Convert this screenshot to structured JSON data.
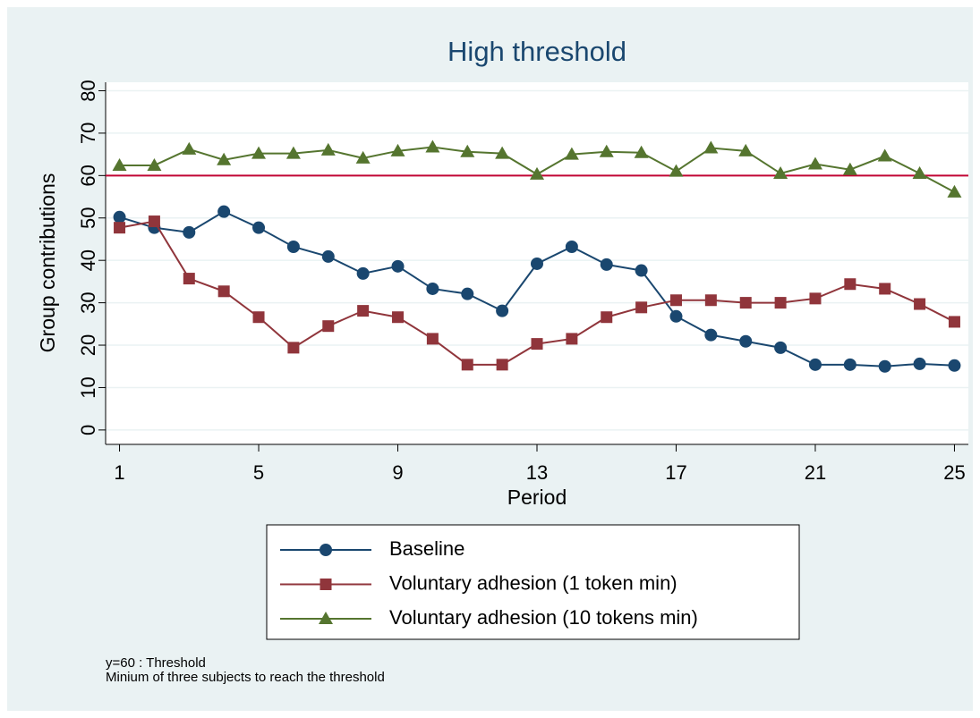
{
  "chart_data": {
    "type": "line",
    "title": "High threshold",
    "x_label": "Period",
    "y_label": "Group contributions",
    "x": [
      1,
      2,
      3,
      4,
      5,
      6,
      7,
      8,
      9,
      10,
      11,
      12,
      13,
      14,
      15,
      16,
      17,
      18,
      19,
      20,
      21,
      22,
      23,
      24,
      25
    ],
    "xlim": [
      0.6,
      25.4
    ],
    "xticks": [
      1,
      5,
      9,
      13,
      17,
      21,
      25
    ],
    "ylim": [
      -3.4,
      82
    ],
    "yticks": [
      0,
      10,
      20,
      30,
      40,
      50,
      60,
      70,
      80
    ],
    "grid": true,
    "hline": {
      "value": 60,
      "color": "#c10534"
    },
    "series": [
      {
        "name": "Baseline",
        "color": "#1a476f",
        "marker": "circle",
        "values": [
          50.2,
          47.7,
          46.6,
          51.5,
          47.7,
          43.2,
          40.9,
          36.9,
          38.6,
          33.3,
          32.1,
          28.1,
          39.2,
          43.2,
          39.0,
          37.6,
          26.8,
          22.4,
          20.9,
          19.4,
          15.4,
          15.4,
          15.0,
          15.6,
          15.2
        ]
      },
      {
        "name": "Voluntary adhesion (1 token min)",
        "color": "#90353b",
        "marker": "square",
        "values": [
          47.7,
          49.2,
          35.7,
          32.7,
          26.6,
          19.4,
          24.5,
          28.1,
          26.6,
          21.5,
          15.4,
          15.4,
          20.3,
          21.5,
          26.6,
          28.9,
          30.6,
          30.6,
          30.0,
          30.0,
          31.0,
          34.4,
          33.3,
          29.7,
          25.5
        ]
      },
      {
        "name": "Voluntary adhesion (10 tokens min)",
        "color": "#55752f",
        "marker": "triangle",
        "values": [
          62.4,
          62.4,
          66.2,
          63.7,
          65.2,
          65.2,
          66.0,
          64.1,
          65.8,
          66.7,
          65.6,
          65.2,
          60.3,
          65.0,
          65.6,
          65.4,
          61.0,
          66.5,
          65.8,
          60.5,
          62.7,
          61.4,
          64.6,
          60.5,
          56.1
        ]
      }
    ],
    "notes": [
      "y=60 : Threshold",
      "Minium of three subjects to reach the threshold"
    ]
  }
}
